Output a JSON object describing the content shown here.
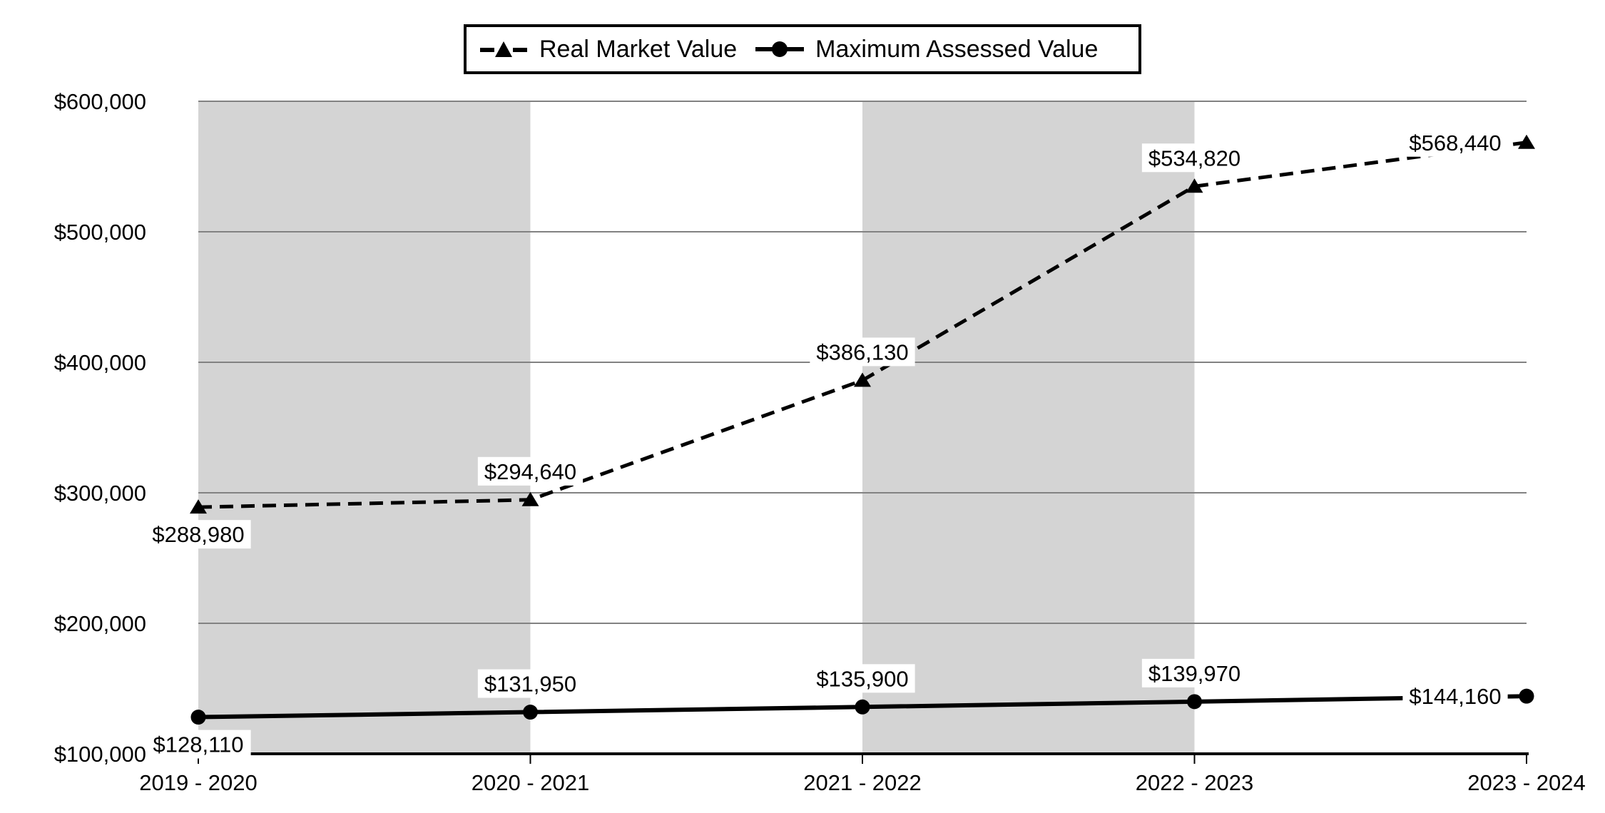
{
  "chart_data": {
    "type": "line",
    "categories": [
      "2019 - 2020",
      "2020 - 2021",
      "2021 - 2022",
      "2022 - 2023",
      "2023 - 2024"
    ],
    "series": [
      {
        "name": "Real Market Value",
        "values": [
          288980,
          294640,
          386130,
          534820,
          568440
        ],
        "data_labels": [
          "$288,980",
          "$294,640",
          "$386,130",
          "$534,820",
          "$568,440"
        ],
        "label_positions": [
          "below",
          "above",
          "above",
          "above",
          "left"
        ],
        "line_style": "dashed",
        "marker": "triangle",
        "color": "#000000"
      },
      {
        "name": "Maximum Assessed Value",
        "values": [
          128110,
          131950,
          135900,
          139970,
          144160
        ],
        "data_labels": [
          "$128,110",
          "$131,950",
          "$135,900",
          "$139,970",
          "$144,160"
        ],
        "label_positions": [
          "below",
          "above",
          "above",
          "above",
          "left"
        ],
        "line_style": "solid",
        "marker": "circle",
        "color": "#000000"
      }
    ],
    "y_axis": {
      "min": 100000,
      "max": 600000,
      "step": 100000,
      "tick_labels": [
        "$100,000",
        "$200,000",
        "$300,000",
        "$400,000",
        "$500,000",
        "$600,000"
      ]
    },
    "x_axis": {
      "tick_labels": [
        "2019 - 2020",
        "2020 - 2021",
        "2021 - 2022",
        "2022 - 2023",
        "2023 - 2024"
      ]
    },
    "grid": true,
    "legend_position": "top",
    "shaded_bands": [
      [
        0,
        1
      ],
      [
        2,
        3
      ]
    ],
    "colors": {
      "band": "#d4d4d4",
      "gridline": "#828282",
      "axis": "#000000",
      "series": "#000000",
      "label_background": "#ffffff"
    }
  }
}
